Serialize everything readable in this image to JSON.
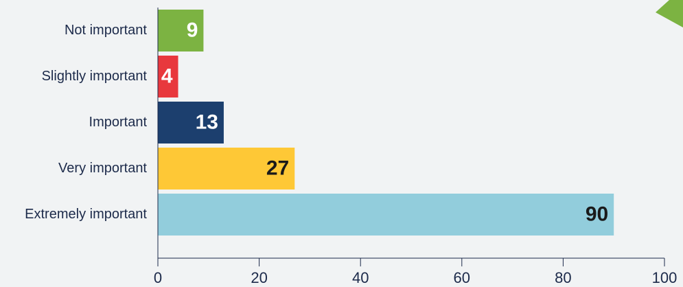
{
  "chart_data": {
    "type": "hbar",
    "categories": [
      "Not important",
      "Slightly important",
      "Important",
      "Very important",
      "Extremely important"
    ],
    "values": [
      9,
      4,
      13,
      27,
      90
    ],
    "colors": [
      "#7cb342",
      "#e8383d",
      "#1c3f6e",
      "#fec836",
      "#92cddc"
    ],
    "xlim": [
      0,
      100
    ],
    "xticks": [
      0,
      20,
      40,
      60,
      80,
      100
    ]
  }
}
